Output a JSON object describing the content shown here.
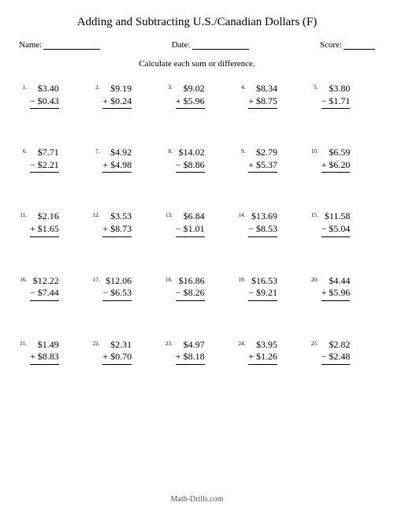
{
  "title": "Adding and Subtracting U.S./Canadian Dollars (F)",
  "labels": {
    "name": "Name:",
    "date": "Date:",
    "score": "Score:"
  },
  "instruction": "Calculate each sum or difference.",
  "footer": "Math-Drills.com",
  "problems": [
    {
      "n": "1.",
      "a": "$3.40",
      "op": "−",
      "b": "$0.43"
    },
    {
      "n": "2.",
      "a": "$9.19",
      "op": "+",
      "b": "$0.24"
    },
    {
      "n": "3.",
      "a": "$9.02",
      "op": "+",
      "b": "$5.96"
    },
    {
      "n": "4.",
      "a": "$8.34",
      "op": "+",
      "b": "$8.75"
    },
    {
      "n": "5.",
      "a": "$3.80",
      "op": "−",
      "b": "$1.71"
    },
    {
      "n": "6.",
      "a": "$7.71",
      "op": "−",
      "b": "$2.21"
    },
    {
      "n": "7.",
      "a": "$4.92",
      "op": "+",
      "b": "$4.98"
    },
    {
      "n": "8.",
      "a": "$14.02",
      "op": "−",
      "b": "$8.86"
    },
    {
      "n": "9.",
      "a": "$2.79",
      "op": "+",
      "b": "$5.37"
    },
    {
      "n": "10.",
      "a": "$6.59",
      "op": "+",
      "b": "$6.20"
    },
    {
      "n": "11.",
      "a": "$2.16",
      "op": "+",
      "b": "$1.65"
    },
    {
      "n": "12.",
      "a": "$3.53",
      "op": "+",
      "b": "$8.73"
    },
    {
      "n": "13.",
      "a": "$6.84",
      "op": "−",
      "b": "$1.01"
    },
    {
      "n": "14.",
      "a": "$13.69",
      "op": "−",
      "b": "$8.53"
    },
    {
      "n": "15.",
      "a": "$11.58",
      "op": "−",
      "b": "$5.04"
    },
    {
      "n": "16.",
      "a": "$12.22",
      "op": "−",
      "b": "$7.44"
    },
    {
      "n": "17.",
      "a": "$12.06",
      "op": "−",
      "b": "$6.53"
    },
    {
      "n": "18.",
      "a": "$16.86",
      "op": "−",
      "b": "$8.26"
    },
    {
      "n": "19.",
      "a": "$16.53",
      "op": "−",
      "b": "$9.21"
    },
    {
      "n": "20.",
      "a": "$4.44",
      "op": "+",
      "b": "$5.96"
    },
    {
      "n": "21.",
      "a": "$1.49",
      "op": "+",
      "b": "$8.83"
    },
    {
      "n": "22.",
      "a": "$2.31",
      "op": "+",
      "b": "$0.70"
    },
    {
      "n": "23.",
      "a": "$4.97",
      "op": "+",
      "b": "$8.18"
    },
    {
      "n": "24.",
      "a": "$3.95",
      "op": "+",
      "b": "$1.26"
    },
    {
      "n": "25.",
      "a": "$2.82",
      "op": "−",
      "b": "$2.48"
    }
  ]
}
